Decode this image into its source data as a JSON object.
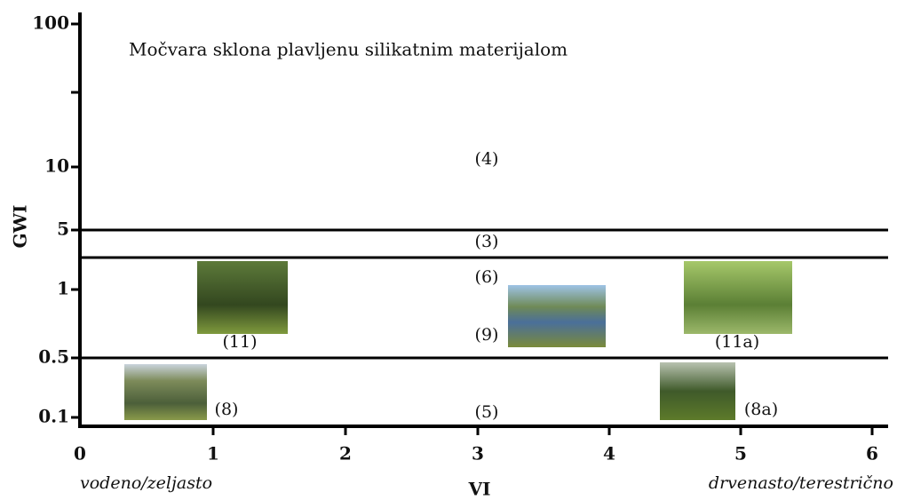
{
  "title": "Močvara sklona plavljenu silikatnim materijalom",
  "y_axis": {
    "label": "GWI",
    "ticks": [
      "100",
      "10",
      "5",
      "1",
      "0.5",
      "0.1"
    ]
  },
  "x_axis": {
    "label": "VI",
    "ticks": [
      "0",
      "1",
      "2",
      "3",
      "4",
      "5",
      "6"
    ],
    "left_label": "vodeno/zeljasto",
    "right_label": "drvenasto/terestrično"
  },
  "regions": [
    "(4)",
    "(3)",
    "(6)",
    "(9)",
    "(5)",
    "(11)",
    "(11a)",
    "(8)",
    "(8a)"
  ]
}
